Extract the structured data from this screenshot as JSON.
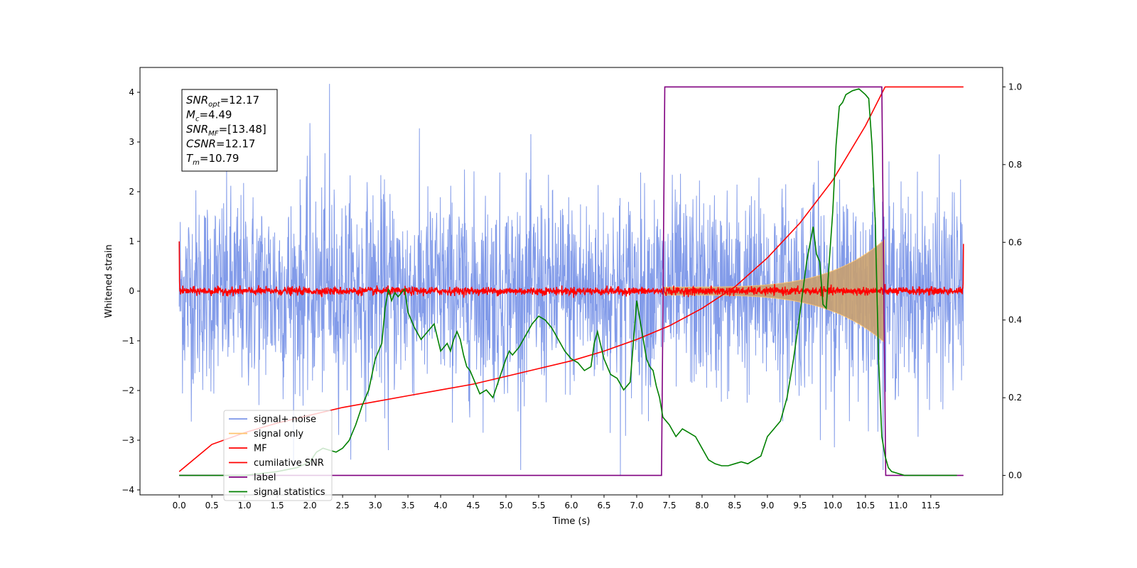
{
  "chart_data": {
    "type": "line",
    "title": "",
    "xlabel": "Time (s)",
    "ylabel": "Whitened strain",
    "xlim": [
      -0.6,
      12.6
    ],
    "ylim_left": [
      -4.1,
      4.5
    ],
    "ylim_right": [
      -0.05,
      1.05
    ],
    "x_ticks": [
      "0.0",
      "0.5",
      "1.0",
      "1.5",
      "2.0",
      "2.5",
      "3.0",
      "3.5",
      "4.0",
      "4.5",
      "5.0",
      "5.5",
      "6.0",
      "6.5",
      "7.0",
      "7.5",
      "8.0",
      "8.5",
      "9.0",
      "9.5",
      "10.0",
      "10.5",
      "11.0",
      "11.5"
    ],
    "y_ticks_left": [
      "4",
      "3",
      "2",
      "1",
      "0",
      "−1",
      "−2",
      "−3",
      "−4"
    ],
    "y_ticks_right": [
      "1.0",
      "0.8",
      "0.6",
      "0.4",
      "0.2",
      "0.0"
    ],
    "grid": false,
    "legend_position": "lower-left",
    "info_box": {
      "lines": [
        {
          "var": "SNR",
          "sub": "opt",
          "value": "=12.17"
        },
        {
          "var": "M",
          "sub": "c",
          "value": "=4.49"
        },
        {
          "var": "SNR",
          "sub": "MF",
          "value": "=[13.48]"
        },
        {
          "var": "CSNR",
          "sub": "",
          "value": "=12.17"
        },
        {
          "var": "T",
          "sub": "m",
          "value": "=10.79"
        }
      ]
    },
    "series": [
      {
        "name": "signal+ noise",
        "axis": "left",
        "color": "#7b96e8",
        "description_kind": "noisy",
        "x_range": [
          0.0,
          12.0
        ],
        "typical_amplitude": 1.0,
        "peak_values": [
          {
            "x": 2.3,
            "y": 4.17
          },
          {
            "x": 6.75,
            "y": -3.72
          },
          {
            "x": 2.0,
            "y": 3.38
          },
          {
            "x": 3.2,
            "y": -3.2
          }
        ]
      },
      {
        "name": "signal only",
        "axis": "left",
        "color": "#ffc46e",
        "description_kind": "chirp-envelope",
        "x_range": [
          7.4,
          10.79
        ],
        "max_amplitude": 0.95
      },
      {
        "name": "MF",
        "axis": "left",
        "color": "#ff0000",
        "description_kind": "noisy-small",
        "x_range": [
          0.0,
          12.0
        ],
        "typical_amplitude": 0.08,
        "edge_values": {
          "start": 1.0,
          "end": 0.95
        }
      },
      {
        "name": "cumilative SNR",
        "axis": "right",
        "color": "#ff0000",
        "x": [
          0.0,
          0.5,
          1.0,
          1.5,
          2.0,
          2.5,
          3.0,
          3.5,
          4.0,
          4.5,
          5.0,
          5.5,
          6.0,
          6.5,
          7.0,
          7.5,
          8.0,
          8.5,
          9.0,
          9.5,
          10.0,
          10.5,
          10.8,
          11.0,
          11.5,
          12.0
        ],
        "values": [
          0.01,
          0.08,
          0.11,
          0.135,
          0.155,
          0.175,
          0.19,
          0.205,
          0.22,
          0.235,
          0.255,
          0.275,
          0.295,
          0.32,
          0.35,
          0.385,
          0.43,
          0.485,
          0.56,
          0.65,
          0.76,
          0.9,
          1.0,
          1.0,
          1.0,
          1.0
        ]
      },
      {
        "name": "label",
        "axis": "right",
        "color": "#800080",
        "x": [
          0.0,
          7.38,
          7.43,
          10.75,
          10.81,
          12.0
        ],
        "values": [
          0.0,
          0.0,
          1.0,
          1.0,
          0.0,
          0.0
        ]
      },
      {
        "name": "signal statistics",
        "axis": "right",
        "color": "#008000",
        "x": [
          0.0,
          0.5,
          1.0,
          1.5,
          1.8,
          2.0,
          2.1,
          2.2,
          2.3,
          2.4,
          2.5,
          2.6,
          2.7,
          2.8,
          2.9,
          3.0,
          3.05,
          3.1,
          3.15,
          3.2,
          3.25,
          3.3,
          3.35,
          3.4,
          3.45,
          3.5,
          3.6,
          3.7,
          3.8,
          3.9,
          4.0,
          4.05,
          4.1,
          4.15,
          4.2,
          4.25,
          4.3,
          4.35,
          4.4,
          4.45,
          4.5,
          4.6,
          4.7,
          4.8,
          4.9,
          5.0,
          5.05,
          5.1,
          5.2,
          5.3,
          5.4,
          5.5,
          5.6,
          5.7,
          5.8,
          5.9,
          6.0,
          6.1,
          6.2,
          6.3,
          6.35,
          6.4,
          6.5,
          6.6,
          6.7,
          6.8,
          6.9,
          7.0,
          7.1,
          7.15,
          7.2,
          7.25,
          7.3,
          7.35,
          7.4,
          7.5,
          7.6,
          7.7,
          7.8,
          7.9,
          8.0,
          8.1,
          8.2,
          8.3,
          8.4,
          8.5,
          8.6,
          8.7,
          8.8,
          8.9,
          9.0,
          9.1,
          9.2,
          9.3,
          9.4,
          9.5,
          9.6,
          9.7,
          9.75,
          9.8,
          9.85,
          9.9,
          9.95,
          10.0,
          10.05,
          10.1,
          10.15,
          10.2,
          10.3,
          10.4,
          10.5,
          10.55,
          10.6,
          10.65,
          10.7,
          10.75,
          10.8,
          10.85,
          10.9,
          11.0,
          11.1,
          11.2,
          11.5,
          11.9
        ],
        "values": [
          0.0,
          0.0,
          0.0,
          0.01,
          0.02,
          0.035,
          0.06,
          0.07,
          0.065,
          0.06,
          0.07,
          0.09,
          0.13,
          0.18,
          0.22,
          0.3,
          0.32,
          0.34,
          0.43,
          0.48,
          0.45,
          0.47,
          0.46,
          0.47,
          0.48,
          0.42,
          0.38,
          0.35,
          0.37,
          0.39,
          0.32,
          0.33,
          0.34,
          0.32,
          0.35,
          0.37,
          0.35,
          0.31,
          0.28,
          0.27,
          0.25,
          0.21,
          0.22,
          0.2,
          0.25,
          0.3,
          0.32,
          0.31,
          0.33,
          0.36,
          0.39,
          0.41,
          0.4,
          0.38,
          0.35,
          0.32,
          0.3,
          0.29,
          0.27,
          0.28,
          0.34,
          0.37,
          0.3,
          0.26,
          0.25,
          0.22,
          0.24,
          0.45,
          0.35,
          0.3,
          0.28,
          0.27,
          0.23,
          0.2,
          0.15,
          0.13,
          0.1,
          0.12,
          0.11,
          0.1,
          0.07,
          0.04,
          0.03,
          0.025,
          0.025,
          0.03,
          0.035,
          0.03,
          0.04,
          0.05,
          0.1,
          0.12,
          0.14,
          0.2,
          0.3,
          0.42,
          0.55,
          0.64,
          0.57,
          0.55,
          0.44,
          0.43,
          0.56,
          0.68,
          0.85,
          0.95,
          0.96,
          0.98,
          0.99,
          0.995,
          0.98,
          0.97,
          0.85,
          0.65,
          0.3,
          0.1,
          0.05,
          0.02,
          0.01,
          0.005,
          0.0,
          0.0,
          0.0,
          0.0
        ]
      }
    ]
  }
}
